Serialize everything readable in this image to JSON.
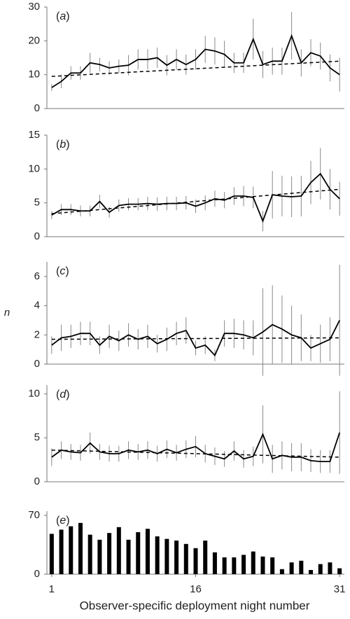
{
  "chart_data": [
    {
      "type": "line",
      "label": "(a)",
      "color": "#000000",
      "x": [
        1,
        2,
        3,
        4,
        5,
        6,
        7,
        8,
        9,
        10,
        11,
        12,
        13,
        14,
        15,
        16,
        17,
        18,
        19,
        20,
        21,
        22,
        23,
        24,
        25,
        26,
        27,
        28,
        29,
        30,
        31
      ],
      "values": [
        6.2,
        8,
        10.5,
        10.5,
        13.5,
        13,
        12,
        12.5,
        12.8,
        14.5,
        14.5,
        15,
        12.8,
        14.5,
        13,
        14.5,
        17.5,
        17,
        16,
        13.5,
        13.5,
        20.5,
        13,
        14,
        14,
        21.5,
        13.5,
        16.5,
        15.5,
        12,
        10
      ],
      "errors": [
        1,
        2,
        2,
        2,
        3,
        2,
        2,
        2,
        3,
        3,
        3,
        3,
        3,
        3,
        3,
        3,
        4,
        4,
        4,
        3,
        3,
        6,
        4,
        4,
        4,
        7,
        4,
        4,
        4,
        4,
        5
      ],
      "trend": {
        "x": [
          1,
          31
        ],
        "values": [
          9.5,
          14
        ]
      },
      "xlim": [
        0.5,
        31.5
      ],
      "ylim": [
        0,
        30
      ],
      "yticks": [
        0,
        10,
        20,
        30
      ]
    },
    {
      "type": "line",
      "label": "(b)",
      "color": "#000000",
      "x": [
        1,
        2,
        3,
        4,
        5,
        6,
        7,
        8,
        9,
        10,
        11,
        12,
        13,
        14,
        15,
        16,
        17,
        18,
        19,
        20,
        21,
        22,
        23,
        24,
        25,
        26,
        27,
        28,
        29,
        30,
        31
      ],
      "values": [
        3.2,
        4,
        4,
        3.8,
        3.8,
        5.2,
        3.6,
        4.6,
        4.8,
        4.8,
        4.9,
        4.8,
        4.9,
        4.9,
        5,
        4.5,
        5,
        5.6,
        5.4,
        6,
        6,
        5.8,
        2.3,
        6.2,
        6,
        5.9,
        6,
        8,
        9.3,
        7,
        5.6
      ],
      "errors": [
        0.6,
        0.8,
        0.8,
        0.8,
        0.8,
        1,
        0.8,
        0.9,
        0.9,
        0.9,
        1,
        1,
        1,
        1,
        1,
        1,
        1.1,
        1.2,
        1.2,
        1.3,
        1.5,
        1.6,
        1.5,
        3.5,
        3,
        3,
        3,
        3.2,
        3.8,
        3,
        2.5
      ],
      "trend": {
        "x": [
          1,
          31
        ],
        "values": [
          3.4,
          7
        ]
      },
      "xlim": [
        0.5,
        31.5
      ],
      "ylim": [
        0,
        15
      ],
      "yticks": [
        0,
        5,
        10,
        15
      ]
    },
    {
      "type": "line",
      "label": "(c)",
      "color": "#000000",
      "y_label": "n",
      "x": [
        1,
        2,
        3,
        4,
        5,
        6,
        7,
        8,
        9,
        10,
        11,
        12,
        13,
        14,
        15,
        16,
        17,
        18,
        19,
        20,
        21,
        22,
        23,
        24,
        25,
        26,
        27,
        28,
        29,
        30,
        31
      ],
      "values": [
        1.3,
        1.8,
        1.9,
        2.1,
        2.1,
        1.3,
        1.9,
        1.6,
        2,
        1.7,
        1.9,
        1.4,
        1.7,
        2.1,
        2.3,
        1.1,
        1.3,
        0.6,
        2.1,
        2.1,
        2,
        1.8,
        2.2,
        2.7,
        2.4,
        2,
        1.8,
        1.1,
        1.4,
        1.7,
        3
      ],
      "errors": [
        0.6,
        0.9,
        0.8,
        0.8,
        0.8,
        0.6,
        0.8,
        0.7,
        0.8,
        0.7,
        0.8,
        0.6,
        0.8,
        0.8,
        0.9,
        0.5,
        0.6,
        0.4,
        0.9,
        1,
        1,
        1.2,
        3,
        2.7,
        2.3,
        2,
        1.6,
        0.9,
        1.3,
        1.5,
        3.8
      ],
      "trend": {
        "x": [
          1,
          31
        ],
        "values": [
          1.7,
          1.8
        ]
      },
      "xlim": [
        0.5,
        31.5
      ],
      "ylim": [
        0,
        7
      ],
      "yticks": [
        0,
        2,
        4,
        6
      ]
    },
    {
      "type": "line",
      "label": "(d)",
      "color": "#000000",
      "x": [
        1,
        2,
        3,
        4,
        5,
        6,
        7,
        8,
        9,
        10,
        11,
        12,
        13,
        14,
        15,
        16,
        17,
        18,
        19,
        20,
        21,
        22,
        23,
        24,
        25,
        26,
        27,
        28,
        29,
        30,
        31
      ],
      "values": [
        2.8,
        3.6,
        3.4,
        3.3,
        4.4,
        3.4,
        3.2,
        3.2,
        3.6,
        3.4,
        3.6,
        3.2,
        3.7,
        3.3,
        3.7,
        4,
        3.2,
        2.9,
        2.6,
        3.5,
        2.6,
        2.9,
        5.4,
        2.6,
        3,
        2.8,
        2.8,
        2.4,
        2.3,
        2.3,
        5.6
      ],
      "errors": [
        1,
        1,
        0.9,
        0.9,
        1.2,
        0.9,
        0.9,
        0.9,
        1,
        0.9,
        1,
        0.9,
        1,
        0.9,
        1,
        1.2,
        1,
        1,
        0.9,
        1.1,
        1,
        1.1,
        3.3,
        1.6,
        1.6,
        1.6,
        1.6,
        1.3,
        1.3,
        1.3,
        4.7
      ],
      "trend": {
        "x": [
          1,
          31
        ],
        "values": [
          3.6,
          2.8
        ]
      },
      "xlim": [
        0.5,
        31.5
      ],
      "ylim": [
        0,
        11
      ],
      "yticks": [
        0,
        5,
        10
      ]
    },
    {
      "type": "bar",
      "label": "(e)",
      "color": "#000000",
      "x": [
        1,
        2,
        3,
        4,
        5,
        6,
        7,
        8,
        9,
        10,
        11,
        12,
        13,
        14,
        15,
        16,
        17,
        18,
        19,
        20,
        21,
        22,
        23,
        24,
        25,
        26,
        27,
        28,
        29,
        30,
        31
      ],
      "values": [
        48,
        53,
        57,
        61,
        47,
        41,
        49,
        56,
        41,
        50,
        54,
        45,
        42,
        40,
        36,
        31,
        40,
        26,
        20,
        20,
        23,
        27,
        21,
        20,
        6,
        14,
        16,
        5,
        12,
        14,
        7
      ],
      "xlim": [
        0.5,
        31.5
      ],
      "ylim": [
        0,
        75
      ],
      "yticks": [
        0,
        70
      ],
      "xticks": [
        1,
        16,
        31
      ],
      "x_label": "Observer-specific deployment night number"
    }
  ]
}
